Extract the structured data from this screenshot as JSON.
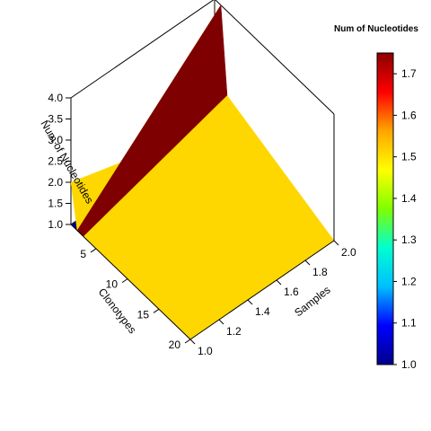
{
  "chart_data": {
    "type": "surface3d",
    "x_axis": {
      "label": "Samples",
      "ticks": [
        "1.0",
        "1.2",
        "1.4",
        "1.6",
        "1.8",
        "2.0"
      ],
      "range": [
        1.0,
        2.0
      ]
    },
    "y_axis": {
      "label": "Clonotypes",
      "ticks": [
        "5",
        "10",
        "15",
        "20"
      ],
      "range": [
        1,
        20
      ]
    },
    "z_axis": {
      "label": "Num of Nucleotides",
      "ticks": [
        "1.0",
        "1.5",
        "2.0",
        "2.5",
        "3.0",
        "3.5",
        "4.0"
      ],
      "range": [
        1.0,
        4.0
      ]
    },
    "colorbar": {
      "title": "Num of Nucleotides",
      "ticks": [
        "1.0",
        "1.1",
        "1.2",
        "1.3",
        "1.4",
        "1.5",
        "1.6",
        "1.7"
      ],
      "range": [
        1.0,
        1.75
      ],
      "colors": [
        "#00008b",
        "#0000ff",
        "#00bfff",
        "#00ffd0",
        "#7fff00",
        "#ffff00",
        "#ffa500",
        "#ff0000",
        "#8b0000"
      ]
    },
    "surface": {
      "samples": [
        1.0,
        2.0
      ],
      "clonotypes": [
        1,
        2,
        3,
        20
      ],
      "z": [
        [
          2.0,
          1.0
        ],
        [
          1.0,
          4.0
        ],
        [
          1.0,
          2.0
        ],
        [
          1.0,
          1.0
        ]
      ],
      "facet_colors": [
        "#ffd700",
        "#7f0000",
        "#ffd700"
      ],
      "base_color": "#00008b"
    }
  }
}
